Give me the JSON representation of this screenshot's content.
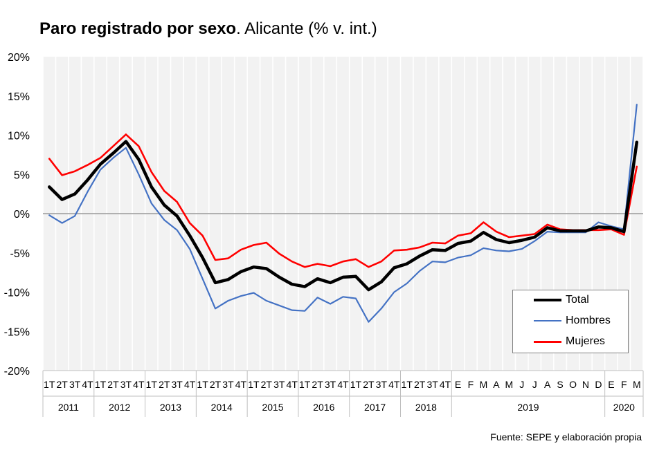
{
  "title": {
    "bold": "Paro registrado por sexo",
    "rest": ". Alicante (% v. int.)"
  },
  "source": "Fuente: SEPE y elaboración propia",
  "chart_data": {
    "type": "line",
    "ylim": [
      -20,
      20
    ],
    "yticks": [
      -20,
      -15,
      -10,
      -5,
      0,
      5,
      10,
      15,
      20
    ],
    "ytick_labels": [
      "-20%",
      "-15%",
      "-10%",
      "-5%",
      "0%",
      "5%",
      "10%",
      "15%",
      "20%"
    ],
    "grid": true,
    "legend_position": "bottom-right",
    "categories": [
      "1T",
      "2T",
      "3T",
      "4T",
      "1T",
      "2T",
      "3T",
      "4T",
      "1T",
      "2T",
      "3T",
      "4T",
      "1T",
      "2T",
      "3T",
      "4T",
      "1T",
      "2T",
      "3T",
      "4T",
      "1T",
      "2T",
      "3T",
      "4T",
      "1T",
      "2T",
      "3T",
      "4T",
      "1T",
      "2T",
      "3T",
      "4T",
      "E",
      "F",
      "M",
      "A",
      "M",
      "J",
      "J",
      "A",
      "S",
      "O",
      "N",
      "D",
      "E",
      "F",
      "M"
    ],
    "groups": [
      {
        "label": "2011",
        "count": 4
      },
      {
        "label": "2012",
        "count": 4
      },
      {
        "label": "2013",
        "count": 4
      },
      {
        "label": "2014",
        "count": 4
      },
      {
        "label": "2015",
        "count": 4
      },
      {
        "label": "2016",
        "count": 4
      },
      {
        "label": "2017",
        "count": 4
      },
      {
        "label": "2018",
        "count": 4
      },
      {
        "label": "2019",
        "count": 12
      },
      {
        "label": "2020",
        "count": 3
      }
    ],
    "series": [
      {
        "name": "Hombres",
        "color": "#4472c4",
        "values": [
          -0.2,
          -1.2,
          -0.3,
          2.8,
          5.6,
          7.1,
          8.4,
          5.0,
          1.3,
          -0.8,
          -2.1,
          -4.5,
          -8.3,
          -12.1,
          -11.1,
          -10.5,
          -10.1,
          -11.1,
          -11.7,
          -12.3,
          -12.4,
          -10.7,
          -11.5,
          -10.6,
          -10.8,
          -13.8,
          -12.1,
          -10.0,
          -8.9,
          -7.3,
          -6.1,
          -6.2,
          -5.6,
          -5.3,
          -4.4,
          -4.7,
          -4.8,
          -4.5,
          -3.5,
          -2.3,
          -2.4,
          -2.4,
          -2.4,
          -1.1,
          -1.6,
          -2.0,
          13.9
        ]
      },
      {
        "name": "Mujeres",
        "color": "#ff0000",
        "values": [
          7.0,
          4.9,
          5.4,
          6.2,
          7.1,
          8.6,
          10.1,
          8.6,
          5.3,
          2.9,
          1.5,
          -1.2,
          -2.8,
          -5.9,
          -5.7,
          -4.6,
          -4.0,
          -3.7,
          -5.1,
          -6.1,
          -6.8,
          -6.4,
          -6.7,
          -6.1,
          -5.8,
          -6.8,
          -6.1,
          -4.7,
          -4.6,
          -4.3,
          -3.7,
          -3.8,
          -2.8,
          -2.5,
          -1.1,
          -2.3,
          -3.0,
          -2.8,
          -2.6,
          -1.4,
          -2.0,
          -2.1,
          -2.1,
          -2.1,
          -2.0,
          -2.7,
          6.0
        ]
      },
      {
        "name": "Total",
        "color": "#000000",
        "values": [
          3.4,
          1.8,
          2.5,
          4.3,
          6.3,
          7.7,
          9.2,
          6.9,
          3.4,
          1.1,
          -0.3,
          -2.8,
          -5.6,
          -8.8,
          -8.4,
          -7.4,
          -6.8,
          -7.0,
          -8.1,
          -9.0,
          -9.3,
          -8.3,
          -8.8,
          -8.1,
          -8.0,
          -9.7,
          -8.7,
          -6.9,
          -6.4,
          -5.4,
          -4.6,
          -4.7,
          -3.8,
          -3.5,
          -2.4,
          -3.3,
          -3.7,
          -3.4,
          -3.0,
          -1.8,
          -2.2,
          -2.2,
          -2.2,
          -1.7,
          -1.8,
          -2.3,
          9.1
        ]
      }
    ],
    "legend": [
      "Total",
      "Hombres",
      "Mujeres"
    ]
  }
}
